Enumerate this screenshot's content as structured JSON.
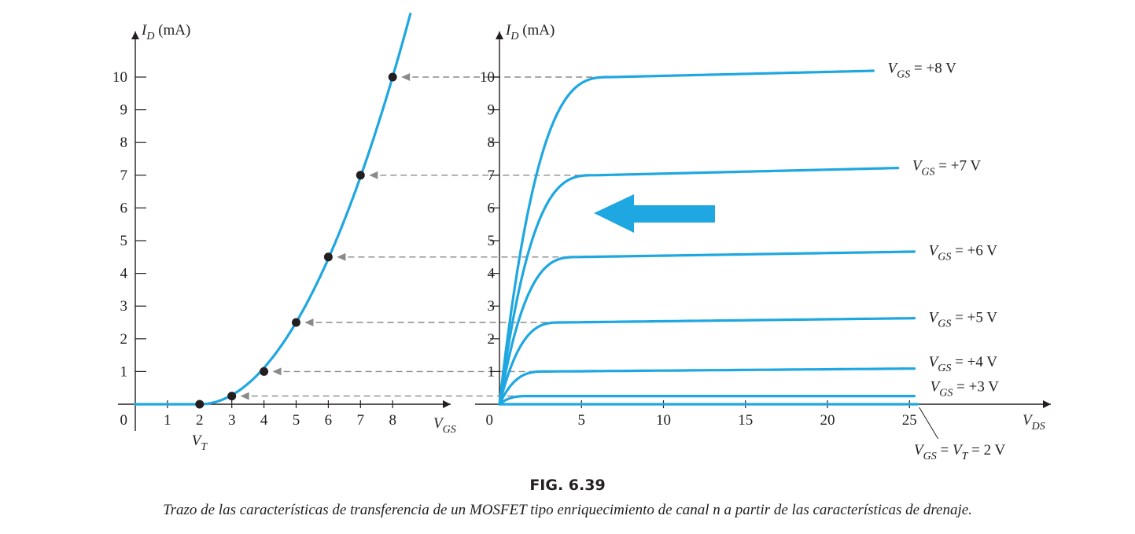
{
  "caption": {
    "label": "FIG. 6.39",
    "text": "Trazo de las características de transferencia de un MOSFET tipo enriquecimiento de canal n a partir de las características de drenaje."
  },
  "colors": {
    "curve": "#1ea7e1",
    "axis": "#231f20",
    "dashed": "#8a8a8a",
    "arrow": "#1ea7e1"
  },
  "chart_data": [
    {
      "type": "line",
      "id": "transfer",
      "y_axis": {
        "symbol": "I",
        "subscript": "D",
        "unit": "(mA)"
      },
      "x_axis": {
        "symbol": "V",
        "subscript": "GS"
      },
      "origin_label": "0",
      "xlim": [
        0,
        9.5
      ],
      "ylim": [
        0,
        11
      ],
      "x_ticks": [
        1,
        2,
        3,
        4,
        5,
        6,
        7,
        8
      ],
      "y_ticks": [
        1,
        2,
        3,
        4,
        5,
        6,
        7,
        8,
        9,
        10
      ],
      "vt_label": {
        "symbol": "V",
        "subscript": "T",
        "at_x": 2
      },
      "threshold_vgs": 2,
      "k_ma_per_v2": 0.278,
      "points": [
        {
          "vgs": 2,
          "id": 0
        },
        {
          "vgs": 3,
          "id": 0.25
        },
        {
          "vgs": 4,
          "id": 1
        },
        {
          "vgs": 5,
          "id": 2.5
        },
        {
          "vgs": 6,
          "id": 4.5
        },
        {
          "vgs": 7,
          "id": 7
        },
        {
          "vgs": 8,
          "id": 10
        }
      ]
    },
    {
      "type": "line",
      "id": "drain",
      "y_axis": {
        "symbol": "I",
        "subscript": "D",
        "unit": "(mA)"
      },
      "x_axis": {
        "symbol": "V",
        "subscript": "DS"
      },
      "origin_label": "0",
      "xlim": [
        0,
        32
      ],
      "ylim": [
        0,
        11
      ],
      "x_ticks": [
        5,
        10,
        15,
        20,
        25
      ],
      "y_ticks": [
        1,
        2,
        3,
        4,
        5,
        6,
        7,
        8,
        9,
        10
      ],
      "series": [
        {
          "label_lhs": "V",
          "label_sub": "GS",
          "label_rhs": "= +8 V",
          "vgs": 8,
          "id_sat": 10,
          "slope": 0.012,
          "x_end": 23
        },
        {
          "label_lhs": "V",
          "label_sub": "GS",
          "label_rhs": "= +7 V",
          "vgs": 7,
          "id_sat": 7,
          "slope": 0.012,
          "x_end": 24.5
        },
        {
          "label_lhs": "V",
          "label_sub": "GS",
          "label_rhs": "= +6 V",
          "vgs": 6,
          "id_sat": 4.5,
          "slope": 0.008,
          "x_end": 25.5
        },
        {
          "label_lhs": "V",
          "label_sub": "GS",
          "label_rhs": "= +5 V",
          "vgs": 5,
          "id_sat": 2.5,
          "slope": 0.006,
          "x_end": 25.5
        },
        {
          "label_lhs": "V",
          "label_sub": "GS",
          "label_rhs": "= +4 V",
          "vgs": 4,
          "id_sat": 1,
          "slope": 0.004,
          "x_end": 25.5
        },
        {
          "label_lhs": "V",
          "label_sub": "GS",
          "label_rhs": "= +3 V",
          "vgs": 3,
          "id_sat": 0.25,
          "slope": 0.0,
          "x_end": 25.5
        },
        {
          "label_lhs": "V",
          "label_sub": "GS",
          "label_sub2": "T",
          "label_rhs": "= 2 V",
          "vgs": 2,
          "id_sat": 0,
          "slope": 0.0,
          "x_end": 25.5
        }
      ]
    }
  ]
}
